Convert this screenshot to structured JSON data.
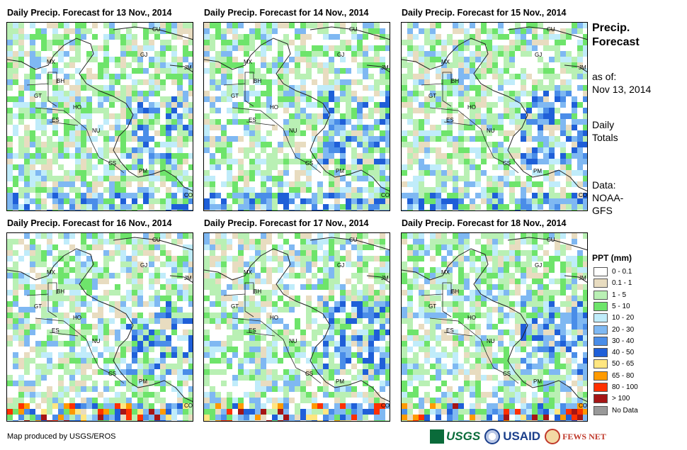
{
  "panels": [
    {
      "title": "Daily Precip. Forecast for 13 Nov., 2014",
      "seed": 13
    },
    {
      "title": "Daily Precip. Forecast for 14 Nov., 2014",
      "seed": 14
    },
    {
      "title": "Daily Precip. Forecast for 15 Nov., 2014",
      "seed": 15
    },
    {
      "title": "Daily Precip. Forecast for 16 Nov., 2014",
      "seed": 16
    },
    {
      "title": "Daily Precip. Forecast for 17 Nov., 2014",
      "seed": 17
    },
    {
      "title": "Daily Precip. Forecast for 18 Nov., 2014",
      "seed": 18
    }
  ],
  "country_labels": [
    "CU",
    "MX",
    "GJ",
    "JM",
    "BH",
    "GT",
    "HO",
    "ES",
    "NU",
    "CS",
    "PM",
    "CO"
  ],
  "side": {
    "title_line1": "Precip.",
    "title_line2": "Forecast",
    "asof_label": "as of:",
    "asof_date": "Nov 13, 2014",
    "totals_line1": "Daily",
    "totals_line2": "Totals",
    "data_line1": "Data:",
    "data_line2": "NOAA-",
    "data_line3": "GFS"
  },
  "legend": {
    "title": "PPT (mm)",
    "items": [
      {
        "label": "0 - 0.1",
        "color": "#ffffff"
      },
      {
        "label": "0.1 - 1",
        "color": "#e8dcc0"
      },
      {
        "label": "1 - 5",
        "color": "#b9f0b4"
      },
      {
        "label": "5 - 10",
        "color": "#6ee46b"
      },
      {
        "label": "10 - 20",
        "color": "#c0ecfa"
      },
      {
        "label": "20 - 30",
        "color": "#7fb8f2"
      },
      {
        "label": "30 - 40",
        "color": "#4a8de8"
      },
      {
        "label": "40 - 50",
        "color": "#1f5fd8"
      },
      {
        "label": "50 - 65",
        "color": "#ffe680"
      },
      {
        "label": "65 - 80",
        "color": "#ff9a00"
      },
      {
        "label": "80 - 100",
        "color": "#ff3000"
      },
      {
        "label": "> 100",
        "color": "#a51515"
      },
      {
        "label": "No Data",
        "color": "#999999"
      }
    ]
  },
  "footer": {
    "credit": "Map produced by USGS/EROS"
  },
  "logos": {
    "usgs": "USGS",
    "usaid": "USAID",
    "fews": "FEWS NET"
  }
}
